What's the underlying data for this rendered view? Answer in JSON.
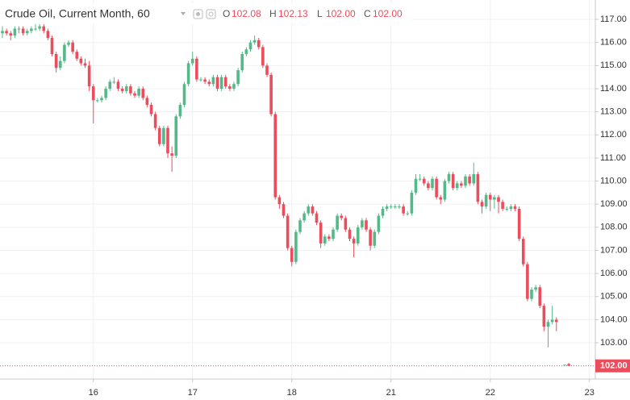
{
  "chart_data": {
    "type": "candlestick",
    "title": "Crude Oil, Current Month, 60",
    "legend_keys": [
      "O",
      "H",
      "L",
      "C"
    ],
    "legend_values": [
      "102.08",
      "102.13",
      "102.00",
      "102.00"
    ],
    "up_color": "#53b987",
    "down_color": "#eb4d5c",
    "ylim": [
      101.43,
      117.84
    ],
    "yticks": [
      {
        "value": 103,
        "label": "103.00"
      },
      {
        "value": 104,
        "label": "104.00"
      },
      {
        "value": 105,
        "label": "105.00"
      },
      {
        "value": 106,
        "label": "106.00"
      },
      {
        "value": 107,
        "label": "107.00"
      },
      {
        "value": 108,
        "label": "108.00"
      },
      {
        "value": 109,
        "label": "109.00"
      },
      {
        "value": 110,
        "label": "110.00"
      },
      {
        "value": 111,
        "label": "111.00"
      },
      {
        "value": 112,
        "label": "112.00"
      },
      {
        "value": 113,
        "label": "113.00"
      },
      {
        "value": 114,
        "label": "114.00"
      },
      {
        "value": 115,
        "label": "115.00"
      },
      {
        "value": 116,
        "label": "116.00"
      },
      {
        "value": 117,
        "label": "117.00"
      }
    ],
    "last_price": {
      "value": 102,
      "label": "102.00"
    },
    "grid": true,
    "categories": [
      null,
      null,
      null,
      null,
      null,
      null,
      null,
      null,
      null,
      null,
      null,
      null,
      null,
      null,
      null,
      null,
      null,
      null,
      null,
      null,
      null,
      null,
      "16",
      null,
      null,
      null,
      null,
      null,
      null,
      null,
      null,
      null,
      null,
      null,
      null,
      null,
      null,
      null,
      null,
      null,
      null,
      null,
      null,
      null,
      null,
      null,
      "17",
      null,
      null,
      null,
      null,
      null,
      null,
      null,
      null,
      null,
      null,
      null,
      null,
      null,
      null,
      null,
      null,
      null,
      null,
      null,
      null,
      null,
      null,
      null,
      "18",
      null,
      null,
      null,
      null,
      null,
      null,
      null,
      null,
      null,
      null,
      null,
      null,
      null,
      null,
      null,
      null,
      null,
      null,
      null,
      null,
      null,
      null,
      null,
      "21",
      null,
      null,
      null,
      null,
      null,
      null,
      null,
      null,
      null,
      null,
      null,
      null,
      null,
      null,
      null,
      null,
      null,
      null,
      null,
      null,
      null,
      null,
      null,
      "22",
      null,
      null,
      null,
      null,
      null,
      null,
      null,
      null,
      null,
      null,
      null,
      null,
      null,
      null,
      null,
      null,
      null,
      null,
      null,
      null,
      null,
      null,
      null,
      "23"
    ],
    "ohlc": [
      [
        116.4,
        116.7,
        116.2,
        116.5
      ],
      [
        116.5,
        116.6,
        116.3,
        116.4
      ],
      [
        116.4,
        116.5,
        116.1,
        116.3
      ],
      [
        116.3,
        116.7,
        116.2,
        116.6
      ],
      [
        116.6,
        116.7,
        116.4,
        116.6
      ],
      [
        116.6,
        116.7,
        116.3,
        116.4
      ],
      [
        116.4,
        116.6,
        116.3,
        116.5
      ],
      [
        116.5,
        116.7,
        116.4,
        116.6
      ],
      [
        116.6,
        116.8,
        116.5,
        116.6
      ],
      [
        116.6,
        116.8,
        116.5,
        116.7
      ],
      [
        116.7,
        116.8,
        116.4,
        116.5
      ],
      [
        116.5,
        116.6,
        116.1,
        116.2
      ],
      [
        116.2,
        116.3,
        115.4,
        115.5
      ],
      [
        115.5,
        115.6,
        114.7,
        114.9
      ],
      [
        114.9,
        115.4,
        114.8,
        115.2
      ],
      [
        115.2,
        116.0,
        115.1,
        115.9
      ],
      [
        115.9,
        116.1,
        115.8,
        116.0
      ],
      [
        116.0,
        116.1,
        115.5,
        115.6
      ],
      [
        115.6,
        115.7,
        115.2,
        115.3
      ],
      [
        115.3,
        115.4,
        115.0,
        115.1
      ],
      [
        115.1,
        115.3,
        114.9,
        115.0
      ],
      [
        115.0,
        115.2,
        113.9,
        114.1
      ],
      [
        114.1,
        114.2,
        112.5,
        113.5
      ],
      [
        113.5,
        113.6,
        113.4,
        113.5
      ],
      [
        113.5,
        113.7,
        113.4,
        113.6
      ],
      [
        113.6,
        114.1,
        113.5,
        114.0
      ],
      [
        114.0,
        114.4,
        113.9,
        114.3
      ],
      [
        114.3,
        114.5,
        114.2,
        114.3
      ],
      [
        114.3,
        114.4,
        113.9,
        114.0
      ],
      [
        114.0,
        114.1,
        113.8,
        113.9
      ],
      [
        113.9,
        114.2,
        113.8,
        114.1
      ],
      [
        114.1,
        114.2,
        113.7,
        113.8
      ],
      [
        113.8,
        113.9,
        113.6,
        113.7
      ],
      [
        113.7,
        114.1,
        113.6,
        114.0
      ],
      [
        114.0,
        114.1,
        113.5,
        113.6
      ],
      [
        113.6,
        113.7,
        113.2,
        113.3
      ],
      [
        113.3,
        113.4,
        112.8,
        112.9
      ],
      [
        112.9,
        113.0,
        112.2,
        112.3
      ],
      [
        112.3,
        112.4,
        111.5,
        111.6
      ],
      [
        111.6,
        112.4,
        111.5,
        112.3
      ],
      [
        112.3,
        112.4,
        111.0,
        111.2
      ],
      [
        111.2,
        111.5,
        110.4,
        111.1
      ],
      [
        111.1,
        112.9,
        111.0,
        112.8
      ],
      [
        112.8,
        113.4,
        112.7,
        113.3
      ],
      [
        113.3,
        114.3,
        113.2,
        114.2
      ],
      [
        114.2,
        115.2,
        114.1,
        115.1
      ],
      [
        115.1,
        115.6,
        115.0,
        115.3
      ],
      [
        115.3,
        115.4,
        114.3,
        114.4
      ],
      [
        114.4,
        114.5,
        114.3,
        114.4
      ],
      [
        114.4,
        114.5,
        114.2,
        114.3
      ],
      [
        114.3,
        114.4,
        114.1,
        114.2
      ],
      [
        114.2,
        114.6,
        114.1,
        114.5
      ],
      [
        114.5,
        114.6,
        113.9,
        114.0
      ],
      [
        114.0,
        114.6,
        113.9,
        114.5
      ],
      [
        114.5,
        114.6,
        114.0,
        114.1
      ],
      [
        114.1,
        114.2,
        113.9,
        114.0
      ],
      [
        114.0,
        114.3,
        113.9,
        114.2
      ],
      [
        114.2,
        114.9,
        114.1,
        114.8
      ],
      [
        114.8,
        115.6,
        114.7,
        115.5
      ],
      [
        115.5,
        115.8,
        115.4,
        115.7
      ],
      [
        115.7,
        116.1,
        115.6,
        116.0
      ],
      [
        116.0,
        116.3,
        115.9,
        116.1
      ],
      [
        116.1,
        116.2,
        115.7,
        115.8
      ],
      [
        115.8,
        115.9,
        114.9,
        115.0
      ],
      [
        115.0,
        115.1,
        114.5,
        114.6
      ],
      [
        114.6,
        114.7,
        112.8,
        112.9
      ],
      [
        112.9,
        113.0,
        109.2,
        109.3
      ],
      [
        109.3,
        109.4,
        108.8,
        109.0
      ],
      [
        109.0,
        109.1,
        108.4,
        108.5
      ],
      [
        108.5,
        108.6,
        107.0,
        107.1
      ],
      [
        107.1,
        107.2,
        106.3,
        106.5
      ],
      [
        106.5,
        107.9,
        106.4,
        107.8
      ],
      [
        107.8,
        108.4,
        107.7,
        108.3
      ],
      [
        108.3,
        108.7,
        108.2,
        108.6
      ],
      [
        108.6,
        109.0,
        108.5,
        108.9
      ],
      [
        108.9,
        109.0,
        108.5,
        108.6
      ],
      [
        108.6,
        108.7,
        108.1,
        108.2
      ],
      [
        108.2,
        108.3,
        107.1,
        107.3
      ],
      [
        107.3,
        107.7,
        107.2,
        107.6
      ],
      [
        107.6,
        107.7,
        107.4,
        107.5
      ],
      [
        107.5,
        108.0,
        107.4,
        107.9
      ],
      [
        107.9,
        108.6,
        107.8,
        108.5
      ],
      [
        108.5,
        108.6,
        108.3,
        108.4
      ],
      [
        108.4,
        108.5,
        107.8,
        107.9
      ],
      [
        107.9,
        108.0,
        107.4,
        107.5
      ],
      [
        107.5,
        107.6,
        106.7,
        107.3
      ],
      [
        107.3,
        108.1,
        107.2,
        108.0
      ],
      [
        108.0,
        108.4,
        107.9,
        108.3
      ],
      [
        108.3,
        108.4,
        107.8,
        107.9
      ],
      [
        107.9,
        108.0,
        107.0,
        107.2
      ],
      [
        107.2,
        107.9,
        107.1,
        107.8
      ],
      [
        107.8,
        108.6,
        107.7,
        108.5
      ],
      [
        108.5,
        108.9,
        108.4,
        108.8
      ],
      [
        108.8,
        109.0,
        108.7,
        108.9
      ],
      [
        108.9,
        109.0,
        108.8,
        108.9
      ],
      [
        108.9,
        109.0,
        108.8,
        108.9
      ],
      [
        108.9,
        109.0,
        108.8,
        108.9
      ],
      [
        108.9,
        109.0,
        108.5,
        108.6
      ],
      [
        108.6,
        108.7,
        108.5,
        108.6
      ],
      [
        108.6,
        109.6,
        108.5,
        109.5
      ],
      [
        109.5,
        110.3,
        109.4,
        110.1
      ],
      [
        110.1,
        110.3,
        110.0,
        110.1
      ],
      [
        110.1,
        110.2,
        109.8,
        109.9
      ],
      [
        109.9,
        110.0,
        109.6,
        109.7
      ],
      [
        109.7,
        110.2,
        109.6,
        110.1
      ],
      [
        110.1,
        110.2,
        109.2,
        109.3
      ],
      [
        109.3,
        109.4,
        109.0,
        109.2
      ],
      [
        109.2,
        110.1,
        109.1,
        110.0
      ],
      [
        110.0,
        110.4,
        109.9,
        110.3
      ],
      [
        110.3,
        110.4,
        109.6,
        109.7
      ],
      [
        109.7,
        110.0,
        109.6,
        109.9
      ],
      [
        109.9,
        110.0,
        109.7,
        109.8
      ],
      [
        109.8,
        110.3,
        109.7,
        110.2
      ],
      [
        110.2,
        110.3,
        109.8,
        109.9
      ],
      [
        109.9,
        110.8,
        109.8,
        110.3
      ],
      [
        110.3,
        110.4,
        109.0,
        109.1
      ],
      [
        109.1,
        109.2,
        108.6,
        108.9
      ],
      [
        108.9,
        109.5,
        108.8,
        109.4
      ],
      [
        109.4,
        109.5,
        108.7,
        109.2
      ],
      [
        109.2,
        109.4,
        108.8,
        109.3
      ],
      [
        109.3,
        109.4,
        108.6,
        109.1
      ],
      [
        109.1,
        109.2,
        108.7,
        108.8
      ],
      [
        108.8,
        108.9,
        108.7,
        108.8
      ],
      [
        108.8,
        109.0,
        108.7,
        108.9
      ],
      [
        108.9,
        109.0,
        108.7,
        108.8
      ],
      [
        108.8,
        108.9,
        107.4,
        107.5
      ],
      [
        107.5,
        107.6,
        106.3,
        106.4
      ],
      [
        106.4,
        106.5,
        104.8,
        104.9
      ],
      [
        104.9,
        105.4,
        104.8,
        105.3
      ],
      [
        105.3,
        105.5,
        105.2,
        105.4
      ],
      [
        105.4,
        105.5,
        104.5,
        104.6
      ],
      [
        104.6,
        104.7,
        103.5,
        103.7
      ],
      [
        103.7,
        104.0,
        102.8,
        103.9
      ],
      [
        103.9,
        104.6,
        103.8,
        104.0
      ],
      [
        104.0,
        104.1,
        103.5,
        103.9
      ],
      null,
      [
        102.05,
        102.06,
        102.04,
        102.05
      ],
      [
        102.08,
        102.13,
        102.0,
        102.0
      ],
      null,
      null,
      null,
      null,
      null
    ]
  }
}
